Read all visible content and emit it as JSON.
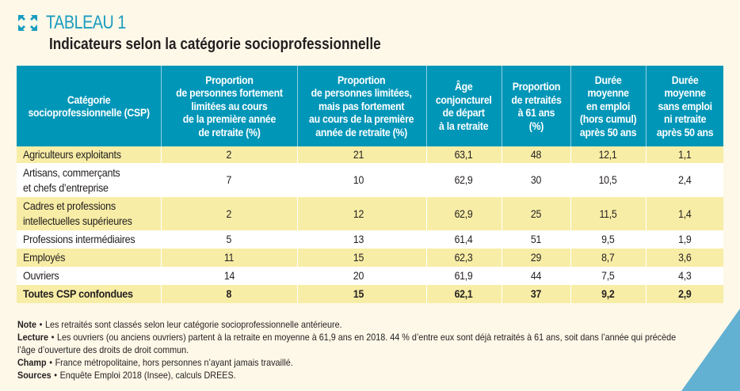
{
  "header": {
    "icon": "expand-arrows-icon",
    "label": "TABLEAU 1",
    "title": "Indicateurs selon la catégorie socioprofessionnelle"
  },
  "colors": {
    "accent": "#1a9cc0",
    "header_bg": "#0096b8",
    "row_highlight": "#f8eda6",
    "page_bg": "#fdf8e8",
    "corner": "#62b0d2"
  },
  "table": {
    "columns": [
      "Catégorie\nsocioprofessionnelle (CSP)",
      "Proportion\nde personnes fortement\nlimitées au cours\nde la première année\nde retraite (%)",
      "Proportion\nde personnes limitées,\nmais pas fortement\nau cours de la première\nannée de retraite (%)",
      "Âge\nconjoncturel\nde départ\nà la retraite",
      "Proportion\nde retraités\nà 61 ans\n(%)",
      "Durée\nmoyenne\nen emploi\n(hors cumul)\naprès 50 ans",
      "Durée\nmoyenne\nsans emploi\nni retraite\naprès 50 ans"
    ],
    "rows": [
      {
        "category": "Agriculteurs exploitants",
        "values": [
          "2",
          "21",
          "63,1",
          "48",
          "12,1",
          "1,1"
        ]
      },
      {
        "category": "Artisans, commerçants\net chefs d’entreprise",
        "values": [
          "7",
          "10",
          "62,9",
          "30",
          "10,5",
          "2,4"
        ]
      },
      {
        "category": "Cadres et professions\nintellectuelles supérieures",
        "values": [
          "2",
          "12",
          "62,9",
          "25",
          "11,5",
          "1,4"
        ]
      },
      {
        "category": "Professions intermédiaires",
        "values": [
          "5",
          "13",
          "61,4",
          "51",
          "9,5",
          "1,9"
        ]
      },
      {
        "category": "Employés",
        "values": [
          "11",
          "15",
          "62,3",
          "29",
          "8,7",
          "3,6"
        ]
      },
      {
        "category": "Ouvriers",
        "values": [
          "14",
          "20",
          "61,9",
          "44",
          "7,5",
          "4,3"
        ]
      }
    ],
    "total": {
      "category": "Toutes CSP confondues",
      "values": [
        "8",
        "15",
        "62,1",
        "37",
        "9,2",
        "2,9"
      ]
    }
  },
  "notes": [
    {
      "label": "Note",
      "text": "Les retraités sont classés selon leur catégorie socioprofessionnelle antérieure."
    },
    {
      "label": "Lecture",
      "text": "Les ouvriers (ou anciens ouvriers) partent à la retraite en moyenne à 61,9 ans en 2018. 44 % d’entre eux sont déjà retraités à 61 ans, soit dans l’année qui précède\nl’âge d’ouverture des droits de droit commun."
    },
    {
      "label": "Champ",
      "text": "France métropolitaine, hors personnes n’ayant jamais travaillé."
    },
    {
      "label": "Sources",
      "text": "Enquête Emploi 2018 (Insee), calculs DREES."
    }
  ],
  "bullet": "•"
}
